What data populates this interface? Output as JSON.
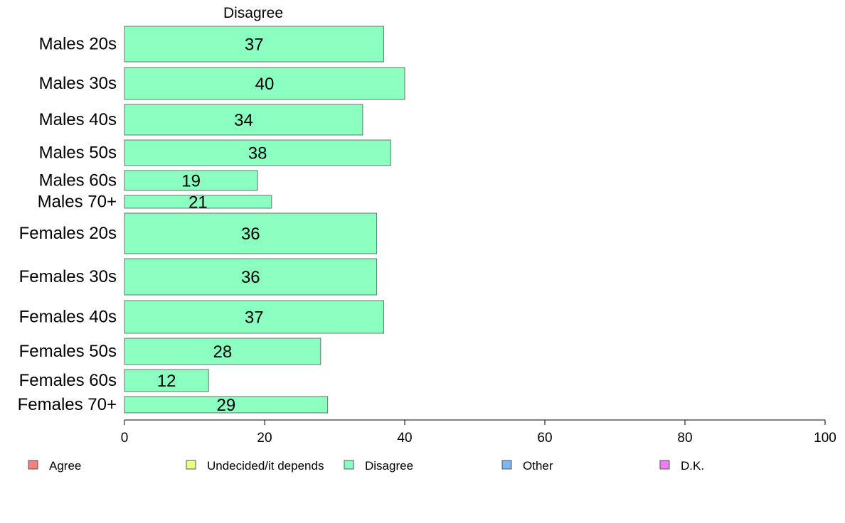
{
  "chart_data": {
    "type": "bar",
    "orientation": "horizontal",
    "title": "Disagree",
    "categories": [
      "Males 20s",
      "Males 30s",
      "Males 40s",
      "Males 50s",
      "Males 60s",
      "Males 70+",
      "Females 20s",
      "Females 30s",
      "Females 40s",
      "Females 50s",
      "Females 60s",
      "Females 70+"
    ],
    "values": [
      37,
      40,
      34,
      38,
      19,
      21,
      36,
      36,
      37,
      28,
      12,
      29
    ],
    "data_labels": [
      "37",
      "40",
      "34",
      "38",
      "19",
      "21",
      "36",
      "36",
      "37",
      "28",
      "12",
      "29"
    ],
    "xlim": [
      0,
      100
    ],
    "xticks": [
      0,
      20,
      40,
      60,
      80,
      100
    ],
    "xtick_labels": [
      "0",
      "20",
      "40",
      "60",
      "80",
      "100"
    ],
    "xlabel": "",
    "ylabel": "",
    "grid": false,
    "bar_color": "#8affbf",
    "bar_edge_color": "#6f6f6f",
    "legend_position": "bottom",
    "legend": [
      {
        "label": "Agree",
        "color": "#f4807f"
      },
      {
        "label": "Undecided/it depends",
        "color": "#eeff80"
      },
      {
        "label": "Disagree",
        "color": "#8affbf"
      },
      {
        "label": "Other",
        "color": "#80b4f4"
      },
      {
        "label": "D.K.",
        "color": "#e97ff0"
      }
    ]
  }
}
